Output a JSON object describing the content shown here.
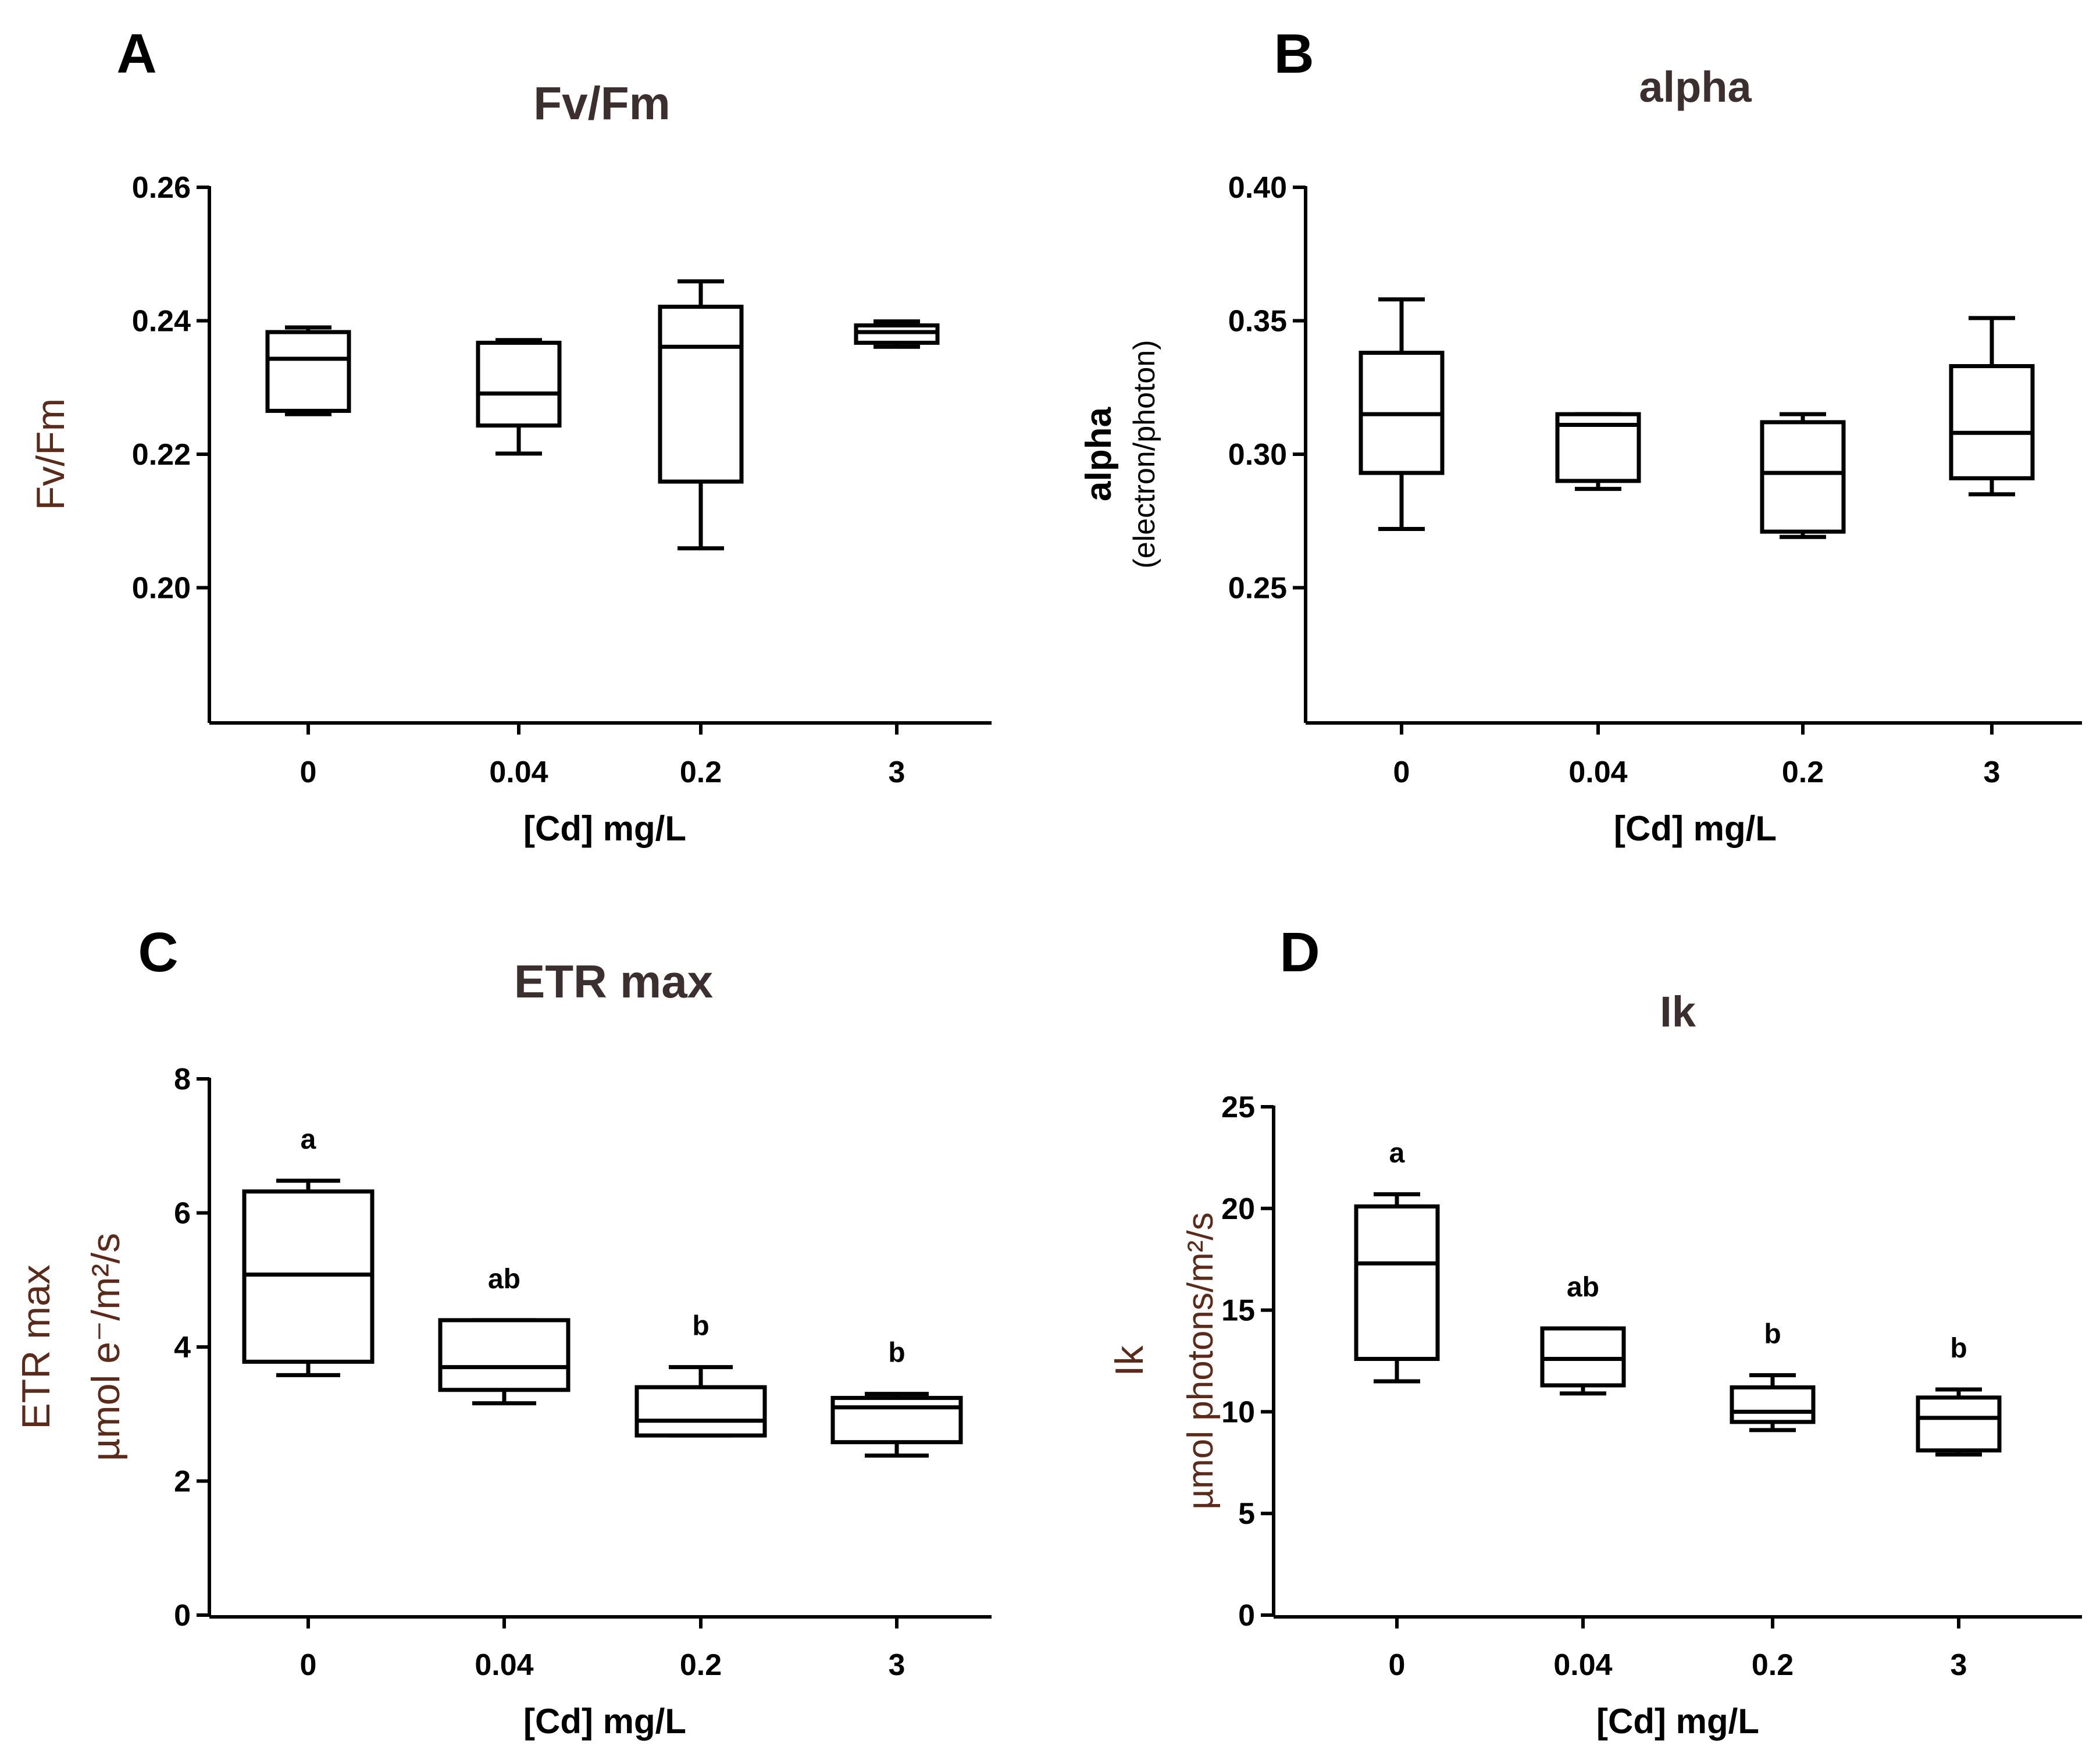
{
  "colors": {
    "axis": "#000000",
    "title_accent": "#3b2f2f",
    "ylabel_accent": "#5a2a1a"
  },
  "chart_data": [
    {
      "panel": "A",
      "type": "box",
      "title": "Fv/Fm",
      "xlabel": "[Cd] mg/L",
      "ylabel": "Fv/Fm",
      "ylim": [
        0.18,
        0.26
      ],
      "yticks": [
        {
          "value": 0.2,
          "label": "0.20"
        },
        {
          "value": 0.22,
          "label": "0.22"
        },
        {
          "value": 0.24,
          "label": "0.24"
        },
        {
          "value": 0.26,
          "label": "0.26"
        }
      ],
      "categories": [
        "0",
        "0.04",
        "0.2",
        "3"
      ],
      "boxes": [
        {
          "min": 0.226,
          "q1": 0.2265,
          "median": 0.2343,
          "q3": 0.2383,
          "max": 0.239,
          "sig": ""
        },
        {
          "min": 0.2201,
          "q1": 0.2243,
          "median": 0.2291,
          "q3": 0.2367,
          "max": 0.2371,
          "sig": ""
        },
        {
          "min": 0.2059,
          "q1": 0.2159,
          "median": 0.2361,
          "q3": 0.2421,
          "max": 0.2459,
          "sig": ""
        },
        {
          "min": 0.2361,
          "q1": 0.2367,
          "median": 0.2383,
          "q3": 0.2393,
          "max": 0.2399,
          "sig": ""
        }
      ]
    },
    {
      "panel": "B",
      "type": "box",
      "title": "alpha",
      "xlabel": "[Cd] mg/L",
      "ylabel": "alpha",
      "ylabel2": "(electron/photon)",
      "ylim": [
        0.2,
        0.4
      ],
      "yticks": [
        {
          "value": 0.25,
          "label": "0.25"
        },
        {
          "value": 0.3,
          "label": "0.30"
        },
        {
          "value": 0.35,
          "label": "0.35"
        },
        {
          "value": 0.4,
          "label": "0.40"
        }
      ],
      "categories": [
        "0",
        "0.04",
        "0.2",
        "3"
      ],
      "boxes": [
        {
          "min": 0.272,
          "q1": 0.293,
          "median": 0.315,
          "q3": 0.338,
          "max": 0.358,
          "sig": ""
        },
        {
          "min": 0.287,
          "q1": 0.29,
          "median": 0.311,
          "q3": 0.315,
          "max": 0.315,
          "sig": ""
        },
        {
          "min": 0.269,
          "q1": 0.271,
          "median": 0.293,
          "q3": 0.312,
          "max": 0.315,
          "sig": ""
        },
        {
          "min": 0.285,
          "q1": 0.291,
          "median": 0.308,
          "q3": 0.333,
          "max": 0.351,
          "sig": ""
        }
      ]
    },
    {
      "panel": "C",
      "type": "box",
      "title": "ETR max",
      "xlabel": "[Cd] mg/L",
      "ylabel": "ETR max",
      "ylabel2": "µmol e⁻/m²/s",
      "ylim": [
        0,
        8
      ],
      "yticks": [
        {
          "value": 0,
          "label": "0"
        },
        {
          "value": 2,
          "label": "2"
        },
        {
          "value": 4,
          "label": "4"
        },
        {
          "value": 6,
          "label": "6"
        },
        {
          "value": 8,
          "label": "8"
        }
      ],
      "categories": [
        "0",
        "0.04",
        "0.2",
        "3"
      ],
      "boxes": [
        {
          "min": 3.58,
          "q1": 3.78,
          "median": 5.08,
          "q3": 6.32,
          "max": 6.48,
          "sig": "a"
        },
        {
          "min": 3.16,
          "q1": 3.36,
          "median": 3.7,
          "q3": 4.4,
          "max": 4.4,
          "sig": "ab"
        },
        {
          "min": 2.68,
          "q1": 2.68,
          "median": 2.9,
          "q3": 3.4,
          "max": 3.7,
          "sig": "b"
        },
        {
          "min": 2.38,
          "q1": 2.58,
          "median": 3.1,
          "q3": 3.24,
          "max": 3.3,
          "sig": "b"
        }
      ]
    },
    {
      "panel": "D",
      "type": "box",
      "title": "Ik",
      "xlabel": "[Cd] mg/L",
      "ylabel": "Ik",
      "ylabel2": "µmol photons/m²/s",
      "ylim": [
        0,
        25
      ],
      "yticks": [
        {
          "value": 0,
          "label": "0"
        },
        {
          "value": 5,
          "label": "5"
        },
        {
          "value": 10,
          "label": "10"
        },
        {
          "value": 15,
          "label": "15"
        },
        {
          "value": 20,
          "label": "20"
        },
        {
          "value": 25,
          "label": "25"
        }
      ],
      "categories": [
        "0",
        "0.04",
        "0.2",
        "3"
      ],
      "boxes": [
        {
          "min": 11.5,
          "q1": 12.6,
          "median": 17.3,
          "q3": 20.1,
          "max": 20.7,
          "sig": "a"
        },
        {
          "min": 10.9,
          "q1": 11.3,
          "median": 12.6,
          "q3": 14.1,
          "max": 14.1,
          "sig": "ab"
        },
        {
          "min": 9.1,
          "q1": 9.5,
          "median": 10.0,
          "q3": 11.2,
          "max": 11.8,
          "sig": "b"
        },
        {
          "min": 7.9,
          "q1": 8.1,
          "median": 9.7,
          "q3": 10.7,
          "max": 11.1,
          "sig": "b"
        }
      ]
    }
  ]
}
